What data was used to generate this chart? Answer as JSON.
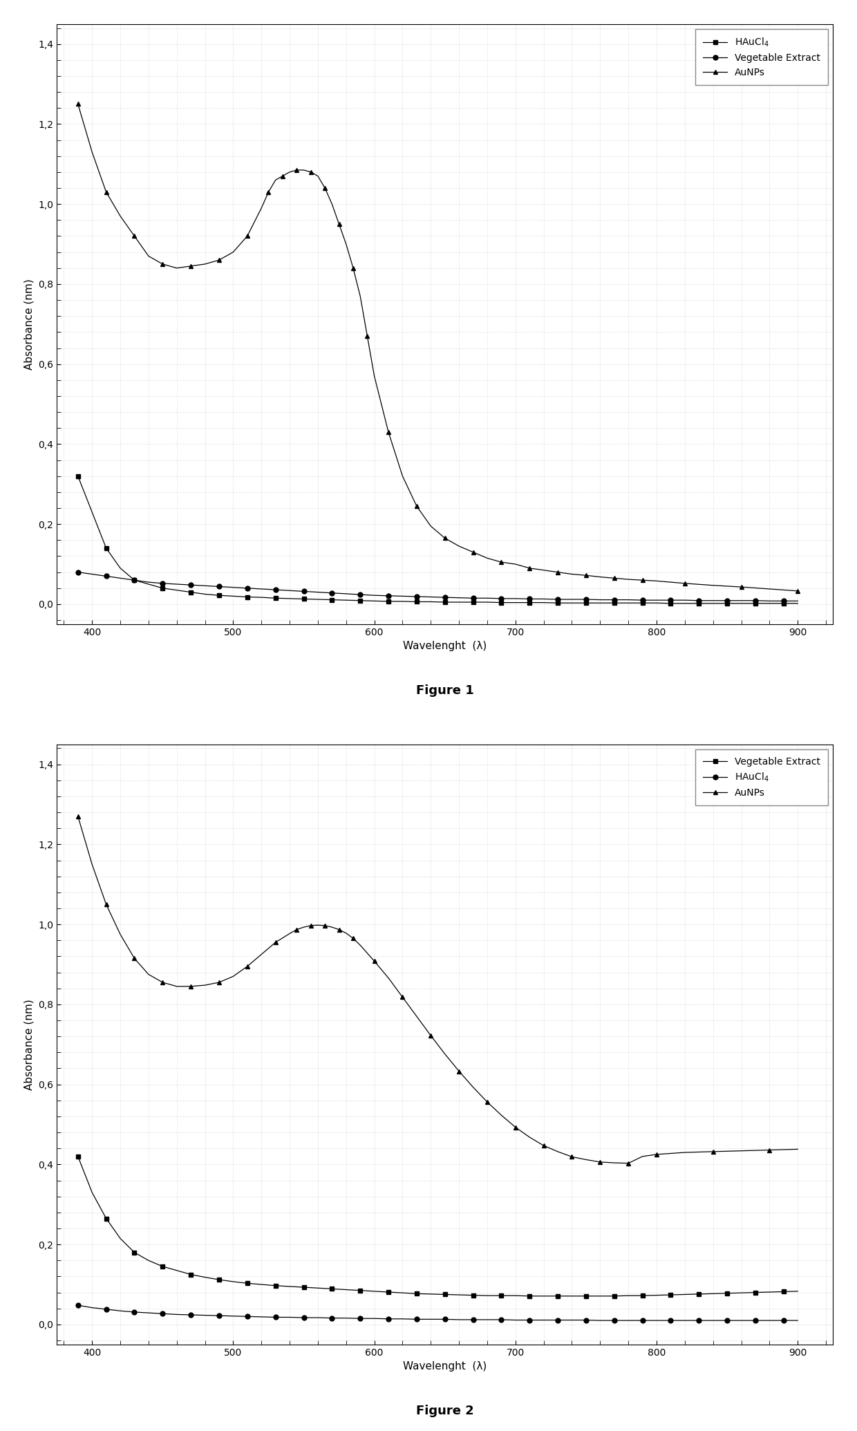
{
  "fig1": {
    "title": "Figure 1",
    "xlabel": "Wavelenght  (λ)",
    "ylabel": "Absorbance (nm)",
    "ylim": [
      -0.05,
      1.45
    ],
    "xlim": [
      375,
      925
    ],
    "xticks": [
      400,
      500,
      600,
      700,
      800,
      900
    ],
    "yticks": [
      0.0,
      0.2,
      0.4,
      0.6,
      0.8,
      1.0,
      1.2,
      1.4
    ],
    "ytick_labels": [
      "0,0",
      "0,2",
      "0,4",
      "0,6",
      "0,8",
      "1,0",
      "1,2",
      "1,4"
    ],
    "legend_order": [
      "HAuCl4",
      "Vegetable Extract",
      "AuNPs"
    ],
    "series": {
      "HAuCl4": {
        "x": [
          390,
          400,
          410,
          420,
          430,
          440,
          450,
          460,
          470,
          480,
          490,
          500,
          510,
          520,
          530,
          540,
          550,
          560,
          570,
          580,
          590,
          600,
          610,
          620,
          630,
          640,
          650,
          660,
          670,
          680,
          690,
          700,
          710,
          720,
          730,
          740,
          750,
          760,
          770,
          780,
          790,
          800,
          810,
          820,
          830,
          840,
          850,
          860,
          870,
          880,
          890,
          900
        ],
        "y": [
          0.32,
          0.23,
          0.14,
          0.09,
          0.06,
          0.05,
          0.04,
          0.035,
          0.03,
          0.025,
          0.022,
          0.02,
          0.018,
          0.017,
          0.015,
          0.014,
          0.013,
          0.012,
          0.011,
          0.01,
          0.009,
          0.008,
          0.007,
          0.007,
          0.006,
          0.006,
          0.005,
          0.005,
          0.005,
          0.005,
          0.004,
          0.004,
          0.004,
          0.004,
          0.003,
          0.003,
          0.003,
          0.003,
          0.003,
          0.003,
          0.003,
          0.003,
          0.002,
          0.002,
          0.002,
          0.002,
          0.002,
          0.002,
          0.002,
          0.002,
          0.002,
          0.002
        ],
        "marker": "s",
        "linestyle": "-",
        "markersize": 4,
        "markevery": 2
      },
      "Vegetable Extract": {
        "x": [
          390,
          400,
          410,
          420,
          430,
          440,
          450,
          460,
          470,
          480,
          490,
          500,
          510,
          520,
          530,
          540,
          550,
          560,
          570,
          580,
          590,
          600,
          610,
          620,
          630,
          640,
          650,
          660,
          670,
          680,
          690,
          700,
          710,
          720,
          730,
          740,
          750,
          760,
          770,
          780,
          790,
          800,
          810,
          820,
          830,
          840,
          850,
          860,
          870,
          880,
          890,
          900
        ],
        "y": [
          0.08,
          0.075,
          0.07,
          0.065,
          0.06,
          0.055,
          0.052,
          0.05,
          0.048,
          0.046,
          0.044,
          0.042,
          0.04,
          0.038,
          0.036,
          0.034,
          0.032,
          0.03,
          0.028,
          0.026,
          0.024,
          0.022,
          0.021,
          0.02,
          0.019,
          0.018,
          0.017,
          0.016,
          0.015,
          0.015,
          0.014,
          0.014,
          0.013,
          0.013,
          0.012,
          0.012,
          0.012,
          0.011,
          0.011,
          0.011,
          0.01,
          0.01,
          0.01,
          0.01,
          0.009,
          0.009,
          0.009,
          0.009,
          0.009,
          0.008,
          0.008,
          0.008
        ],
        "marker": "o",
        "linestyle": "-",
        "markersize": 5,
        "markevery": 2
      },
      "AuNPs": {
        "x": [
          390,
          400,
          410,
          420,
          430,
          440,
          450,
          460,
          470,
          480,
          490,
          500,
          510,
          520,
          525,
          530,
          535,
          540,
          545,
          550,
          555,
          560,
          565,
          570,
          575,
          580,
          585,
          590,
          595,
          600,
          610,
          620,
          630,
          640,
          650,
          660,
          670,
          680,
          690,
          700,
          710,
          720,
          730,
          740,
          750,
          760,
          770,
          780,
          790,
          800,
          820,
          840,
          860,
          880,
          900
        ],
        "y": [
          1.25,
          1.13,
          1.03,
          0.97,
          0.92,
          0.87,
          0.85,
          0.84,
          0.845,
          0.85,
          0.86,
          0.88,
          0.92,
          0.99,
          1.03,
          1.06,
          1.07,
          1.08,
          1.085,
          1.085,
          1.08,
          1.07,
          1.04,
          1.0,
          0.95,
          0.9,
          0.84,
          0.77,
          0.67,
          0.57,
          0.43,
          0.32,
          0.245,
          0.195,
          0.165,
          0.145,
          0.13,
          0.115,
          0.105,
          0.1,
          0.09,
          0.085,
          0.08,
          0.075,
          0.072,
          0.068,
          0.065,
          0.062,
          0.06,
          0.058,
          0.052,
          0.047,
          0.043,
          0.038,
          0.033
        ],
        "marker": "^",
        "linestyle": "-",
        "markersize": 5,
        "markevery": 2
      }
    }
  },
  "fig2": {
    "title": "Figure 2",
    "xlabel": "Wavelenght  (λ)",
    "ylabel": "Absorbance (nm)",
    "ylim": [
      -0.05,
      1.45
    ],
    "xlim": [
      375,
      925
    ],
    "xticks": [
      400,
      500,
      600,
      700,
      800,
      900
    ],
    "yticks": [
      0.0,
      0.2,
      0.4,
      0.6,
      0.8,
      1.0,
      1.2,
      1.4
    ],
    "ytick_labels": [
      "0,0",
      "0,2",
      "0,4",
      "0,6",
      "0,8",
      "1,0",
      "1,2",
      "1,4"
    ],
    "legend_order": [
      "Vegetable Extract",
      "HAuCl4",
      "AuNPs"
    ],
    "series": {
      "Vegetable Extract": {
        "x": [
          390,
          400,
          410,
          420,
          430,
          440,
          450,
          460,
          470,
          480,
          490,
          500,
          510,
          520,
          530,
          540,
          550,
          560,
          570,
          580,
          590,
          600,
          610,
          620,
          630,
          640,
          650,
          660,
          670,
          680,
          690,
          700,
          710,
          720,
          730,
          740,
          750,
          760,
          770,
          780,
          790,
          800,
          810,
          820,
          830,
          840,
          850,
          860,
          870,
          880,
          890,
          900
        ],
        "y": [
          0.42,
          0.33,
          0.265,
          0.215,
          0.18,
          0.16,
          0.145,
          0.135,
          0.125,
          0.118,
          0.112,
          0.107,
          0.103,
          0.1,
          0.097,
          0.095,
          0.093,
          0.091,
          0.089,
          0.087,
          0.085,
          0.083,
          0.081,
          0.079,
          0.077,
          0.076,
          0.075,
          0.074,
          0.073,
          0.072,
          0.072,
          0.072,
          0.071,
          0.071,
          0.071,
          0.071,
          0.071,
          0.071,
          0.071,
          0.072,
          0.072,
          0.073,
          0.074,
          0.075,
          0.076,
          0.077,
          0.078,
          0.079,
          0.08,
          0.081,
          0.082,
          0.083
        ],
        "marker": "s",
        "linestyle": "-",
        "markersize": 4,
        "markevery": 2
      },
      "HAuCl4": {
        "x": [
          390,
          400,
          410,
          420,
          430,
          440,
          450,
          460,
          470,
          480,
          490,
          500,
          510,
          520,
          530,
          540,
          550,
          560,
          570,
          580,
          590,
          600,
          610,
          620,
          630,
          640,
          650,
          660,
          670,
          680,
          690,
          700,
          710,
          720,
          730,
          740,
          750,
          760,
          770,
          780,
          790,
          800,
          810,
          820,
          830,
          840,
          850,
          860,
          870,
          880,
          890,
          900
        ],
        "y": [
          0.048,
          0.042,
          0.038,
          0.034,
          0.031,
          0.029,
          0.027,
          0.025,
          0.024,
          0.023,
          0.022,
          0.021,
          0.02,
          0.019,
          0.018,
          0.018,
          0.017,
          0.017,
          0.016,
          0.016,
          0.015,
          0.015,
          0.014,
          0.014,
          0.013,
          0.013,
          0.013,
          0.012,
          0.012,
          0.012,
          0.012,
          0.011,
          0.011,
          0.011,
          0.011,
          0.011,
          0.011,
          0.01,
          0.01,
          0.01,
          0.01,
          0.01,
          0.01,
          0.01,
          0.01,
          0.01,
          0.01,
          0.01,
          0.01,
          0.01,
          0.01,
          0.01
        ],
        "marker": "o",
        "linestyle": "-",
        "markersize": 5,
        "markevery": 2
      },
      "AuNPs": {
        "x": [
          390,
          400,
          410,
          420,
          430,
          440,
          450,
          460,
          470,
          480,
          490,
          500,
          510,
          520,
          530,
          540,
          545,
          550,
          555,
          560,
          565,
          570,
          575,
          580,
          585,
          590,
          600,
          610,
          620,
          630,
          640,
          650,
          660,
          670,
          680,
          690,
          700,
          710,
          720,
          730,
          740,
          750,
          760,
          770,
          780,
          790,
          800,
          820,
          840,
          860,
          880,
          900
        ],
        "y": [
          1.27,
          1.15,
          1.05,
          0.975,
          0.915,
          0.875,
          0.855,
          0.845,
          0.845,
          0.848,
          0.855,
          0.87,
          0.895,
          0.925,
          0.955,
          0.977,
          0.987,
          0.993,
          0.997,
          0.998,
          0.997,
          0.993,
          0.987,
          0.978,
          0.965,
          0.948,
          0.908,
          0.866,
          0.818,
          0.77,
          0.722,
          0.676,
          0.633,
          0.593,
          0.556,
          0.523,
          0.493,
          0.468,
          0.447,
          0.432,
          0.419,
          0.412,
          0.406,
          0.404,
          0.403,
          0.42,
          0.425,
          0.43,
          0.432,
          0.434,
          0.436,
          0.438
        ],
        "marker": "^",
        "linestyle": "-",
        "markersize": 5,
        "markevery": 2
      }
    }
  },
  "fig_bg": "#ffffff",
  "plot_bg": "#ffffff",
  "grid_color": "#c8c8c8",
  "title_fontsize": 13,
  "axis_label_fontsize": 11,
  "tick_fontsize": 10,
  "legend_fontsize": 10
}
